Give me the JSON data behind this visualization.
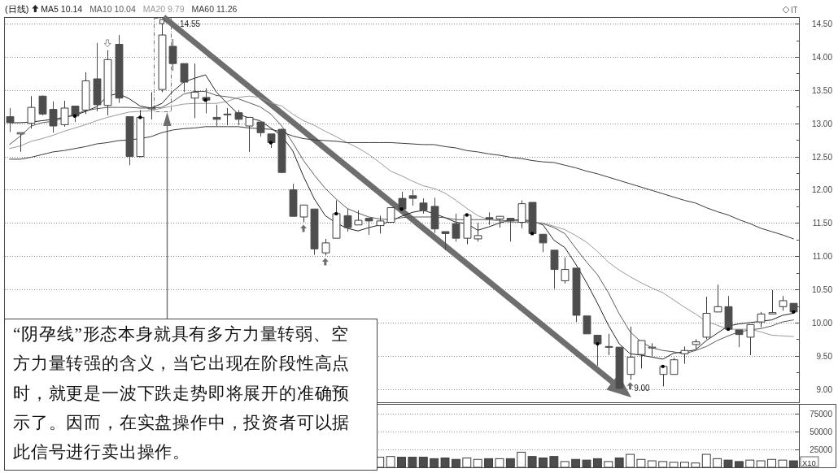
{
  "chart_data": [
    {
      "type": "candlestick",
      "title": "(日线)",
      "grid": "y",
      "categories": [
        null,
        null,
        null,
        null,
        null,
        null,
        null,
        null,
        null,
        null,
        null,
        null,
        null,
        null,
        null,
        null,
        null,
        null,
        null,
        null,
        null,
        null,
        null,
        null,
        null,
        null,
        null,
        null,
        null,
        null,
        null,
        null,
        null,
        null,
        null,
        null,
        null,
        null,
        null,
        null,
        null,
        null,
        null,
        null,
        null,
        null,
        null,
        null,
        null,
        null,
        null,
        null,
        null,
        null,
        null,
        null,
        null,
        null,
        null,
        null,
        null,
        null,
        null,
        null,
        null,
        null,
        null,
        null,
        null,
        null,
        null,
        null,
        null
      ],
      "ohlc": [
        [
          13.1,
          13.23,
          12.87,
          13.01
        ],
        [
          12.84,
          12.86,
          12.57,
          12.86
        ],
        [
          13.0,
          13.41,
          12.92,
          13.24
        ],
        [
          13.41,
          13.42,
          13.12,
          13.14
        ],
        [
          13.21,
          13.33,
          12.86,
          12.96
        ],
        [
          12.98,
          13.34,
          12.95,
          13.23
        ],
        [
          13.26,
          13.26,
          13.02,
          13.11
        ],
        [
          13.2,
          13.77,
          13.14,
          13.64
        ],
        [
          13.67,
          14.21,
          13.18,
          13.28
        ],
        [
          13.27,
          14.1,
          13.12,
          13.96
        ],
        [
          14.19,
          14.33,
          13.31,
          13.38
        ],
        [
          13.1,
          13.1,
          12.37,
          12.5
        ],
        [
          12.5,
          13.2,
          12.49,
          13.09
        ],
        [
          13.23,
          13.47,
          13.06,
          13.23
        ],
        [
          13.51,
          14.55,
          13.47,
          14.33
        ],
        [
          14.16,
          14.27,
          13.79,
          13.9
        ],
        [
          13.9,
          13.9,
          13.47,
          13.62
        ],
        [
          13.38,
          13.9,
          13.08,
          13.47
        ],
        [
          13.39,
          13.53,
          13.15,
          13.35
        ],
        [
          13.09,
          13.28,
          12.96,
          13.06
        ],
        [
          13.14,
          13.23,
          12.97,
          13.14
        ],
        [
          13.16,
          13.2,
          12.97,
          13.06
        ],
        [
          12.96,
          13.09,
          12.57,
          13.09
        ],
        [
          13.02,
          13.02,
          12.8,
          12.86
        ],
        [
          12.84,
          12.84,
          12.63,
          12.71
        ],
        [
          12.91,
          12.92,
          12.25,
          12.26
        ],
        [
          12.0,
          12.09,
          11.6,
          11.6
        ],
        [
          11.59,
          11.77,
          11.51,
          11.77
        ],
        [
          11.71,
          11.71,
          11.02,
          11.11
        ],
        [
          11.05,
          11.26,
          11.01,
          11.2
        ],
        [
          11.27,
          11.84,
          11.27,
          11.64
        ],
        [
          11.61,
          11.71,
          11.37,
          11.43
        ],
        [
          11.47,
          11.69,
          11.47,
          11.54
        ],
        [
          11.57,
          11.57,
          11.32,
          11.53
        ],
        [
          11.46,
          11.61,
          11.34,
          11.53
        ],
        [
          11.51,
          11.73,
          11.51,
          11.73
        ],
        [
          11.87,
          11.97,
          11.71,
          11.71
        ],
        [
          11.91,
          12.0,
          11.76,
          11.87
        ],
        [
          11.8,
          11.87,
          11.64,
          11.69
        ],
        [
          11.75,
          11.88,
          11.35,
          11.41
        ],
        [
          11.37,
          11.37,
          11.09,
          11.34
        ],
        [
          11.49,
          11.64,
          11.22,
          11.27
        ],
        [
          11.27,
          11.62,
          11.18,
          11.62
        ],
        [
          11.26,
          11.5,
          11.22,
          11.31
        ],
        [
          11.58,
          11.66,
          11.47,
          11.56
        ],
        [
          11.56,
          11.6,
          11.43,
          11.6
        ],
        [
          11.57,
          11.57,
          11.22,
          11.53
        ],
        [
          11.51,
          11.84,
          11.42,
          11.79
        ],
        [
          11.81,
          11.81,
          11.32,
          11.34
        ],
        [
          11.33,
          11.33,
          11.06,
          11.2
        ],
        [
          11.09,
          11.09,
          10.51,
          10.8
        ],
        [
          10.63,
          10.98,
          10.59,
          10.8
        ],
        [
          10.82,
          10.82,
          10.01,
          10.11
        ],
        [
          10.1,
          10.1,
          9.83,
          9.83
        ],
        [
          9.81,
          9.81,
          9.35,
          9.68
        ],
        [
          9.63,
          9.83,
          9.51,
          9.64
        ],
        [
          9.63,
          9.63,
          9.0,
          9.01
        ],
        [
          9.22,
          9.94,
          9.14,
          9.48
        ],
        [
          9.52,
          9.73,
          9.31,
          9.73
        ],
        [
          9.63,
          9.69,
          9.49,
          9.63
        ],
        [
          9.22,
          9.34,
          9.04,
          9.34
        ],
        [
          9.22,
          9.47,
          9.22,
          9.44
        ],
        [
          9.53,
          9.64,
          9.38,
          9.58
        ],
        [
          9.67,
          9.75,
          9.6,
          9.71
        ],
        [
          9.78,
          10.39,
          9.75,
          10.14
        ],
        [
          10.16,
          10.57,
          10.16,
          10.24
        ],
        [
          10.24,
          10.4,
          9.9,
          9.9
        ],
        [
          9.89,
          9.89,
          9.63,
          9.82
        ],
        [
          9.78,
          9.97,
          9.51,
          9.97
        ],
        [
          10.01,
          10.16,
          9.93,
          10.13
        ],
        [
          10.13,
          10.49,
          10.13,
          10.15
        ],
        [
          10.24,
          10.4,
          10.18,
          10.33
        ],
        [
          10.29,
          10.29,
          10.16,
          10.16
        ]
      ],
      "series": [
        {
          "name": "MA5 10.14",
          "type": "line",
          "color": "#222222",
          "values": [
            13.01,
            13.01,
            13.02,
            13.04,
            13.06,
            13.09,
            13.12,
            13.18,
            13.25,
            13.41,
            13.45,
            13.37,
            13.26,
            13.23,
            13.3,
            13.48,
            13.62,
            13.68,
            13.73,
            13.47,
            13.3,
            13.14,
            13.08,
            13.04,
            12.93,
            12.81,
            12.59,
            12.2,
            11.86,
            11.61,
            11.5,
            11.42,
            11.38,
            11.43,
            11.47,
            11.53,
            11.6,
            11.66,
            11.69,
            11.64,
            11.58,
            11.51,
            11.49,
            11.39,
            11.44,
            11.5,
            11.54,
            11.55,
            11.53,
            11.47,
            11.24,
            11.13,
            10.88,
            10.6,
            10.29,
            9.96,
            9.68,
            9.53,
            9.51,
            9.48,
            9.45,
            9.54,
            9.56,
            9.59,
            9.73,
            9.84,
            9.95,
            9.98,
            10.0,
            10.02,
            10.04,
            10.11,
            10.14
          ]
        },
        {
          "name": "MA10 10.04",
          "type": "line",
          "color": "#5a5a5a",
          "values": [
            12.68,
            12.81,
            12.96,
            13.01,
            13.03,
            13.08,
            13.14,
            13.19,
            13.22,
            13.24,
            13.24,
            13.24,
            13.23,
            13.23,
            13.24,
            13.33,
            13.44,
            13.48,
            13.48,
            13.42,
            13.4,
            13.37,
            13.31,
            13.25,
            13.14,
            12.96,
            12.71,
            12.44,
            12.22,
            12.02,
            11.86,
            11.72,
            11.65,
            11.59,
            11.56,
            11.55,
            11.58,
            11.59,
            11.59,
            11.59,
            11.58,
            11.55,
            11.55,
            11.55,
            11.55,
            11.54,
            11.53,
            11.53,
            11.51,
            11.49,
            11.43,
            11.34,
            11.12,
            10.91,
            10.72,
            10.45,
            10.13,
            9.86,
            9.71,
            9.62,
            9.58,
            9.56,
            9.53,
            9.58,
            9.64,
            9.73,
            9.8,
            9.86,
            9.89,
            9.91,
            9.95,
            10.01,
            10.04
          ]
        },
        {
          "name": "MA20 9.79",
          "type": "line",
          "color": "#9a9a9a",
          "values": [
            12.62,
            12.66,
            12.73,
            12.77,
            12.82,
            12.88,
            12.93,
            12.98,
            13.04,
            13.09,
            13.13,
            13.17,
            13.18,
            13.19,
            13.23,
            13.26,
            13.29,
            13.3,
            13.3,
            13.3,
            13.33,
            13.39,
            13.41,
            13.39,
            13.31,
            13.26,
            13.14,
            13.04,
            12.97,
            12.88,
            12.8,
            12.71,
            12.63,
            12.53,
            12.41,
            12.28,
            12.21,
            12.13,
            12.06,
            12.02,
            11.95,
            11.84,
            11.72,
            11.61,
            11.55,
            11.53,
            11.51,
            11.51,
            11.51,
            11.5,
            11.45,
            11.4,
            11.31,
            11.21,
            11.07,
            10.91,
            10.79,
            10.69,
            10.6,
            10.52,
            10.45,
            10.34,
            10.23,
            10.13,
            10.02,
            9.96,
            9.9,
            9.9,
            9.9,
            9.86,
            9.81,
            9.8,
            9.79
          ]
        },
        {
          "name": "MA60 11.26",
          "type": "line",
          "color": "#3a3a3a",
          "values": [
            12.46,
            12.46,
            12.49,
            12.53,
            12.57,
            12.59,
            12.62,
            12.65,
            12.69,
            12.71,
            12.74,
            12.75,
            12.77,
            12.8,
            12.86,
            12.9,
            12.92,
            12.93,
            12.95,
            12.95,
            12.95,
            12.95,
            12.93,
            12.92,
            12.91,
            12.87,
            12.81,
            12.77,
            12.75,
            12.74,
            12.73,
            12.71,
            12.71,
            12.71,
            12.71,
            12.71,
            12.7,
            12.69,
            12.68,
            12.68,
            12.65,
            12.63,
            12.59,
            12.57,
            12.54,
            12.52,
            12.49,
            12.47,
            12.44,
            12.42,
            12.41,
            12.37,
            12.33,
            12.28,
            12.24,
            12.19,
            12.14,
            12.09,
            12.04,
            11.99,
            11.94,
            11.89,
            11.84,
            11.8,
            11.73,
            11.67,
            11.62,
            11.55,
            11.49,
            11.42,
            11.37,
            11.32,
            11.26
          ]
        }
      ],
      "ylim": [
        8.8,
        14.6
      ],
      "yticks": [
        {
          "value": 9,
          "label": "9.00"
        },
        {
          "value": 9.25,
          "label": null
        },
        {
          "value": 9.5,
          "label": "9.50"
        },
        {
          "value": 9.75,
          "label": null
        },
        {
          "value": 10,
          "label": "10.00"
        },
        {
          "value": 10.25,
          "label": null
        },
        {
          "value": 10.5,
          "label": "10.50"
        },
        {
          "value": 10.75,
          "label": null
        },
        {
          "value": 11,
          "label": "11.00"
        },
        {
          "value": 11.25,
          "label": null
        },
        {
          "value": 11.5,
          "label": "11.50"
        },
        {
          "value": 11.75,
          "label": null
        },
        {
          "value": 12,
          "label": "12.00"
        },
        {
          "value": 12.25,
          "label": null
        },
        {
          "value": 12.5,
          "label": "12.50"
        },
        {
          "value": 12.75,
          "label": null
        },
        {
          "value": 13,
          "label": "13.00"
        },
        {
          "value": 13.25,
          "label": null
        },
        {
          "value": 13.5,
          "label": "13.50"
        },
        {
          "value": 13.75,
          "label": null
        },
        {
          "value": 14,
          "label": "14.00"
        },
        {
          "value": 14.25,
          "label": null
        },
        {
          "value": 14.5,
          "label": "14.50"
        }
      ],
      "annotations": [
        "14.55",
        "9.00",
        "“阴孕线”形态本身就具有多方力量转弱、空方力量转强的含义，当它出现在阶段性高点时，就更是一波下跌走势即将展开的准确预示了。因而，在实盘操作中，投资者可以据此信号进行卖出操作。"
      ]
    },
    {
      "type": "bar",
      "grid": "y",
      "ylabel": "X10",
      "categories": [
        null,
        null,
        null,
        null,
        null,
        null,
        null,
        null,
        null,
        null,
        null,
        null,
        null,
        null,
        null,
        null,
        null,
        null,
        null,
        null,
        null,
        null,
        null,
        null,
        null,
        null,
        null,
        null,
        null,
        null,
        null,
        null,
        null,
        null,
        null,
        null,
        null,
        null,
        null,
        null,
        null,
        null,
        null,
        null,
        null,
        null,
        null,
        null,
        null,
        null,
        null,
        null,
        null,
        null,
        null,
        null,
        null,
        null,
        null,
        null,
        null,
        null,
        null,
        null,
        null,
        null,
        null,
        null,
        null,
        null,
        null,
        null,
        null
      ],
      "values": [
        null,
        null,
        null,
        null,
        null,
        null,
        null,
        null,
        null,
        null,
        null,
        null,
        null,
        null,
        null,
        null,
        null,
        null,
        null,
        null,
        null,
        null,
        null,
        null,
        null,
        null,
        null,
        null,
        null,
        null,
        null,
        null,
        null,
        null,
        14000,
        15000,
        14000,
        14000,
        14000,
        12000,
        13000,
        11000,
        13000,
        11000,
        12000,
        12000,
        12000,
        21000,
        15000,
        13000,
        15000,
        8000,
        11000,
        10000,
        12000,
        8000,
        13000,
        18000,
        11000,
        9000,
        8000,
        7000,
        7000,
        6000,
        18000,
        12000,
        10000,
        8000,
        10000,
        9000,
        11000,
        10000,
        9000
      ],
      "colors": [
        null,
        null,
        null,
        null,
        null,
        null,
        null,
        null,
        null,
        null,
        null,
        null,
        null,
        null,
        null,
        null,
        null,
        null,
        null,
        null,
        null,
        null,
        null,
        null,
        null,
        null,
        null,
        null,
        null,
        null,
        null,
        null,
        null,
        null,
        "#ffffff",
        "#ffffff",
        "#4d4d4d",
        "#4d4d4d",
        "#4d4d4d",
        "#4d4d4d",
        "#4d4d4d",
        "#4d4d4d",
        "#ffffff",
        "#ffffff",
        "#4d4d4d",
        "#ffffff",
        "#4d4d4d",
        "#ffffff",
        "#4d4d4d",
        "#4d4d4d",
        "#4d4d4d",
        "#ffffff",
        "#4d4d4d",
        "#4d4d4d",
        "#4d4d4d",
        "#ffffff",
        "#4d4d4d",
        "#ffffff",
        "#ffffff",
        "#ffffff",
        "#ffffff",
        "#ffffff",
        "#ffffff",
        "#ffffff",
        "#ffffff",
        "#ffffff",
        "#4d4d4d",
        "#4d4d4d",
        "#ffffff",
        "#ffffff",
        "#ffffff",
        "#ffffff",
        "#4d4d4d"
      ],
      "ylim": [
        0,
        88000
      ],
      "yticks": [
        25000,
        50000,
        75000
      ]
    }
  ]
}
